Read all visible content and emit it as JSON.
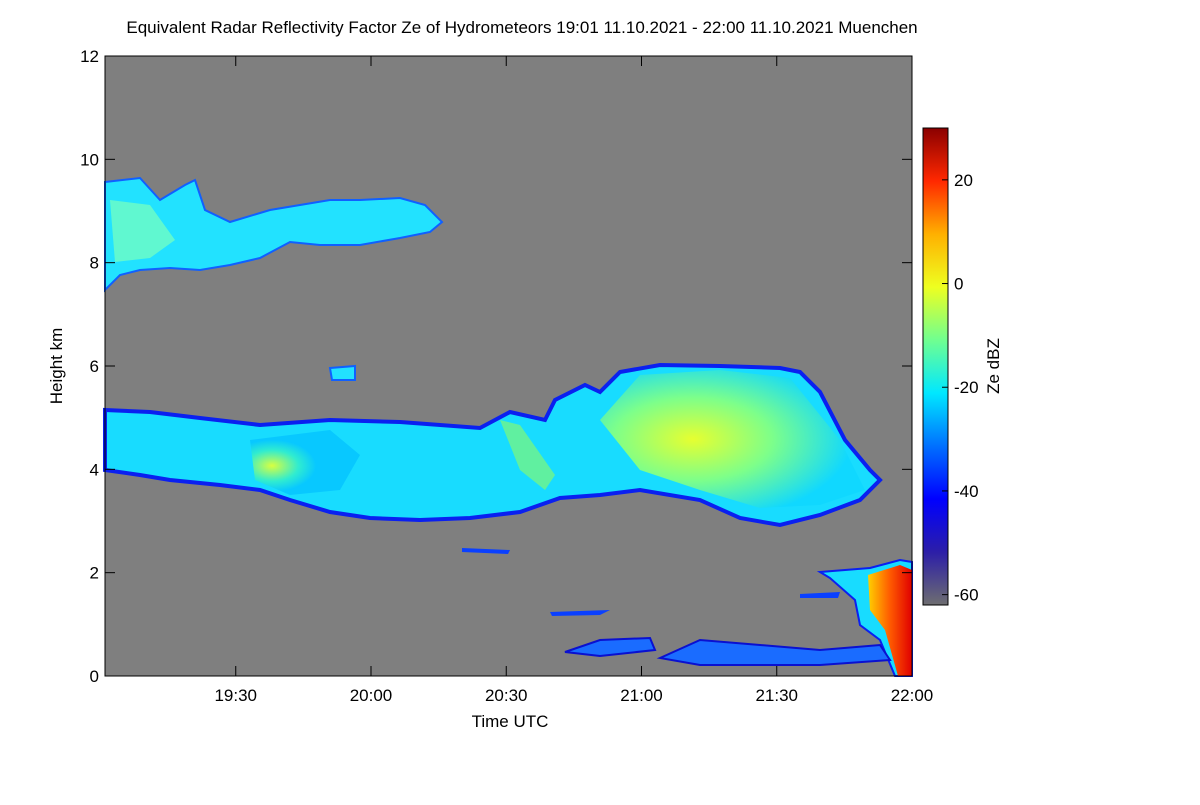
{
  "chart_data": {
    "type": "heatmap",
    "title": "Equivalent Radar Reflectivity Factor Ze of Hydrometeors   19:01 11.10.2021 - 22:00 11.10.2021 Muenchen",
    "xlabel": "Time UTC",
    "ylabel": "Height km",
    "colorbar_label": "Ze dBZ",
    "xlim": [
      1141,
      1320
    ],
    "xticks": [
      {
        "value": 1170,
        "label": "19:30"
      },
      {
        "value": 1200,
        "label": "20:00"
      },
      {
        "value": 1230,
        "label": "20:30"
      },
      {
        "value": 1260,
        "label": "21:00"
      },
      {
        "value": 1290,
        "label": "21:30"
      },
      {
        "value": 1320,
        "label": "22:00"
      }
    ],
    "ylim": [
      0,
      12
    ],
    "yticks": [
      0,
      2,
      4,
      6,
      8,
      10,
      12
    ],
    "zlim": [
      -62,
      30
    ],
    "zticks": [
      -60,
      -40,
      -20,
      0,
      20
    ],
    "background": "#7f7f7f",
    "colormap": [
      "#6e6e70",
      "#2c1ea8",
      "#0000ff",
      "#0070ff",
      "#00e8ff",
      "#70ff90",
      "#eeff20",
      "#ffb000",
      "#ff2800",
      "#8b0000"
    ]
  }
}
